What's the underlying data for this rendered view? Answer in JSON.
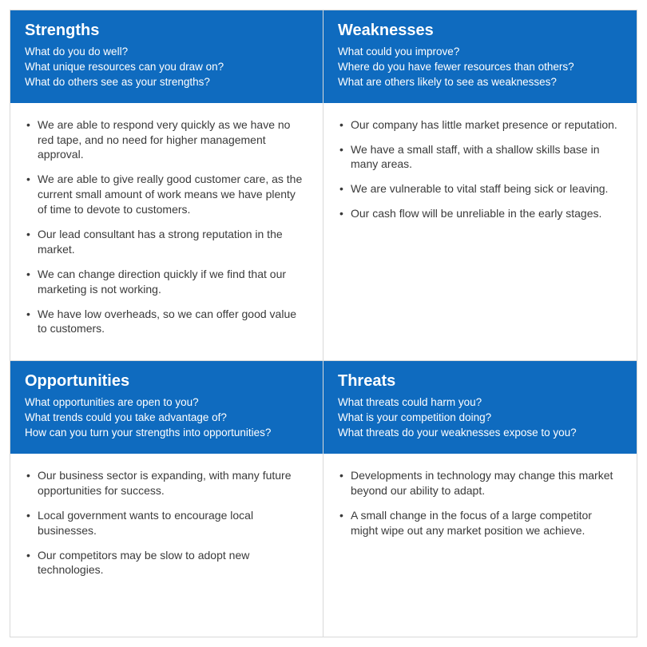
{
  "layout": {
    "type": "infographic",
    "structure": "2x2-grid",
    "header_bg": "#0f6bbf",
    "header_fg": "#ffffff",
    "body_bg": "#ffffff",
    "body_fg": "#3a3a3a",
    "border_color": "#d9d9d9",
    "title_fontsize": 20,
    "question_fontsize": 13.5,
    "item_fontsize": 14
  },
  "quadrants": [
    {
      "key": "strengths",
      "title": "Strengths",
      "questions": [
        "What do you do well?",
        "What unique resources can you draw on?",
        "What do others see as your strengths?"
      ],
      "items": [
        "We are able to respond very quickly as we have no red tape, and no need for higher management approval.",
        "We are able to give really good customer care, as the current small amount of work means we have plenty of time to devote to customers.",
        "Our lead consultant has a strong reputation in the market.",
        "We can change direction quickly if we find that our marketing is not working.",
        "We have low overheads, so we can offer good value to customers."
      ]
    },
    {
      "key": "weaknesses",
      "title": "Weaknesses",
      "questions": [
        "What could you improve?",
        "Where do you have fewer resources than others?",
        "What are others likely to see as weaknesses?"
      ],
      "items": [
        "Our company has little market presence or reputation.",
        "We have a small staff, with a shallow skills base in many areas.",
        "We are vulnerable to vital staff being sick or leaving.",
        "Our cash flow will be unreliable in the early stages."
      ]
    },
    {
      "key": "opportunities",
      "title": "Opportunities",
      "questions": [
        "What opportunities are open to you?",
        "What trends could you take advantage of?",
        "How can you turn your strengths into opportunities?"
      ],
      "items": [
        "Our business sector is expanding, with many future opportunities for success.",
        "Local government wants to encourage local businesses.",
        "Our competitors may be slow to adopt new technologies."
      ]
    },
    {
      "key": "threats",
      "title": "Threats",
      "questions": [
        "What threats could harm you?",
        "What is your competition doing?",
        "What threats do your weaknesses expose to you?"
      ],
      "items": [
        "Developments in technology may change this market beyond our ability to adapt.",
        "A small change in the focus of a large competitor might wipe out any market position we achieve."
      ]
    }
  ]
}
